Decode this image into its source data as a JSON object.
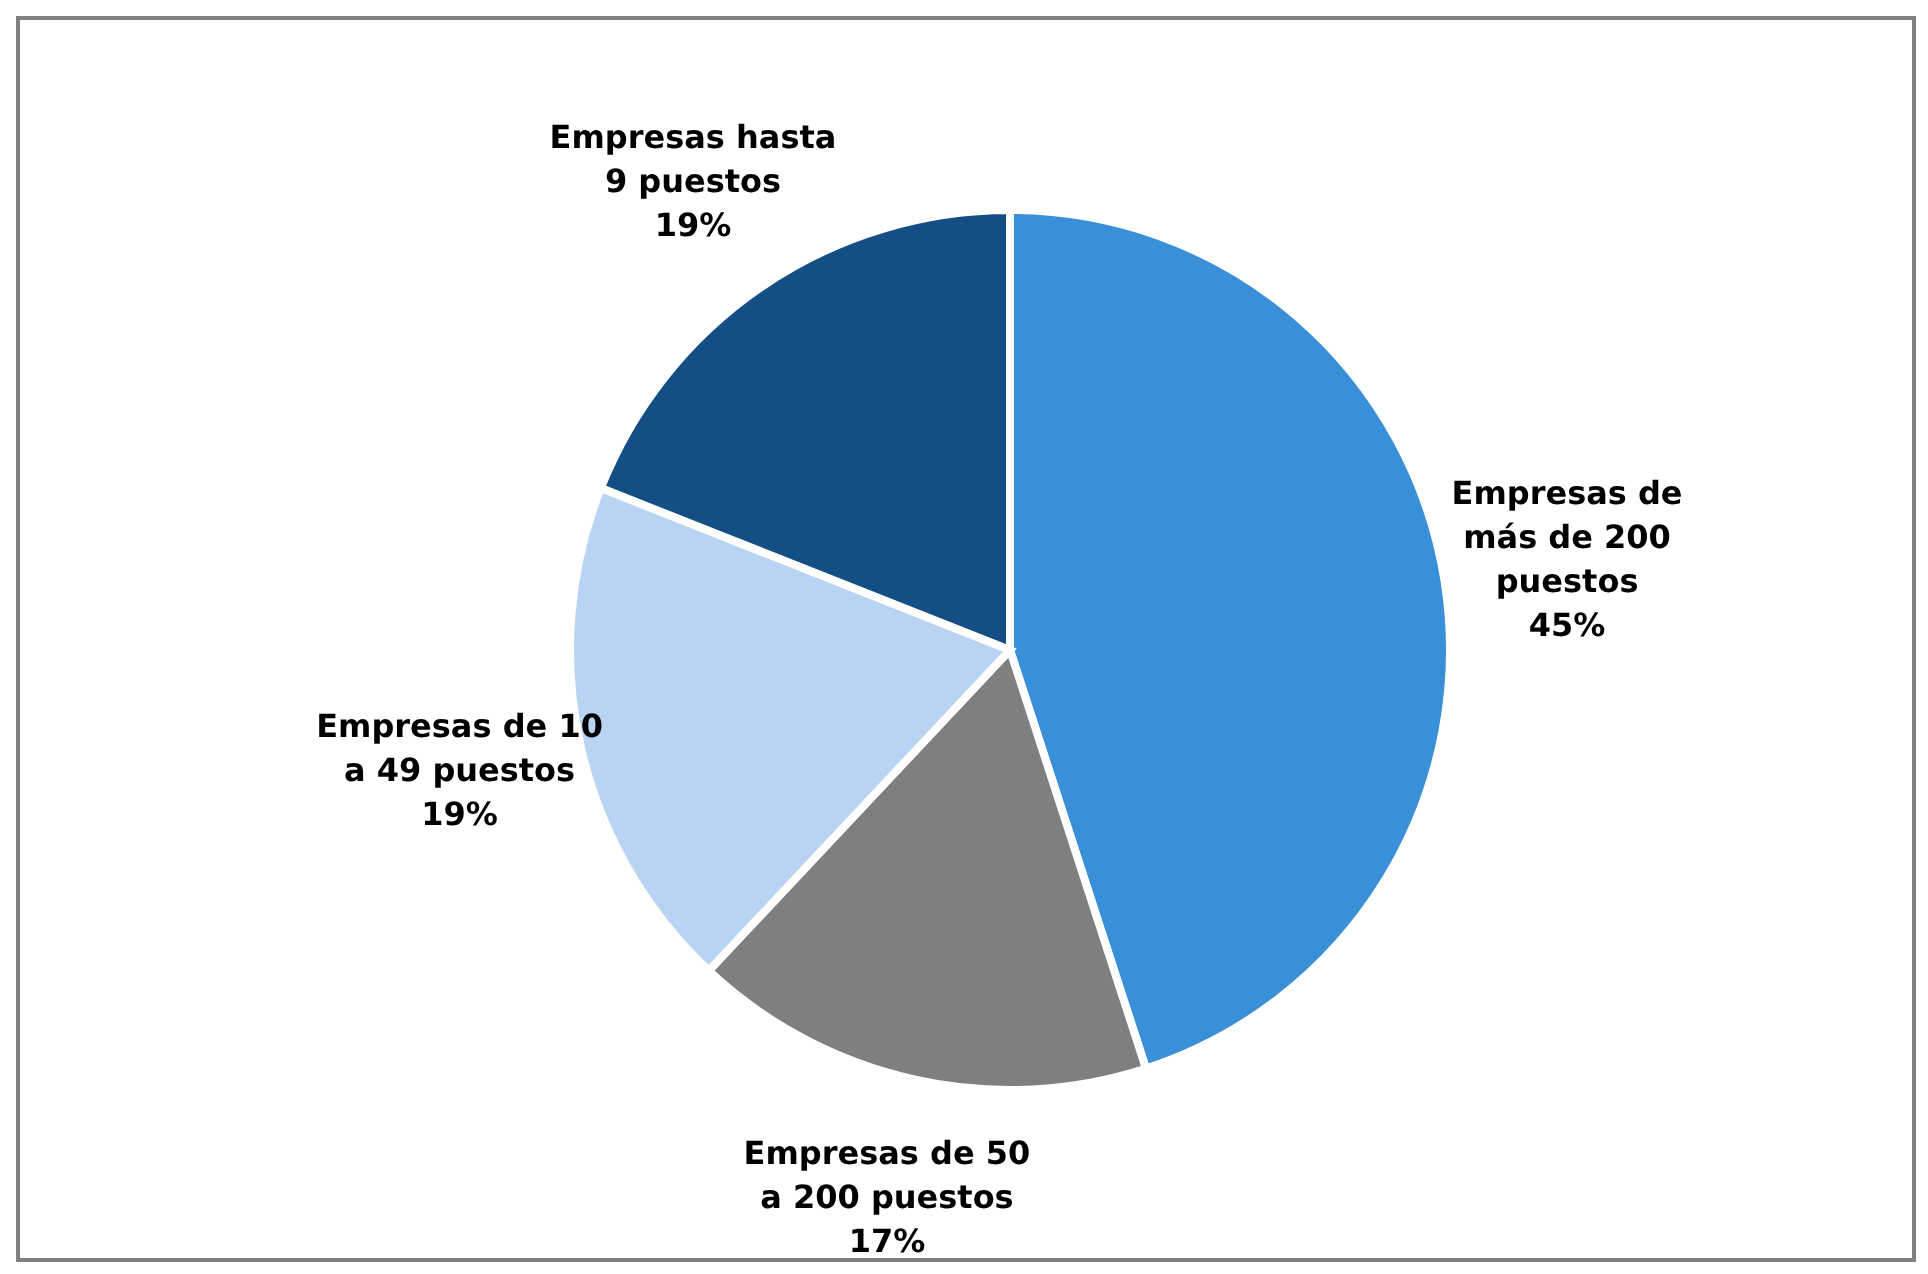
{
  "chart_data": {
    "type": "pie",
    "categories": [
      "Empresas de más de 200 puestos",
      "Empresas de 50 a 200 puestos",
      "Empresas de 10 a 49 puestos",
      "Empresas hasta 9 puestos"
    ],
    "values": [
      45,
      17,
      19,
      19
    ],
    "colors": [
      "#3a8fd9",
      "#7f7f7f",
      "#b9d3f2",
      "#134f85"
    ],
    "value_labels": [
      "45%",
      "17%",
      "19%",
      "19%"
    ]
  }
}
